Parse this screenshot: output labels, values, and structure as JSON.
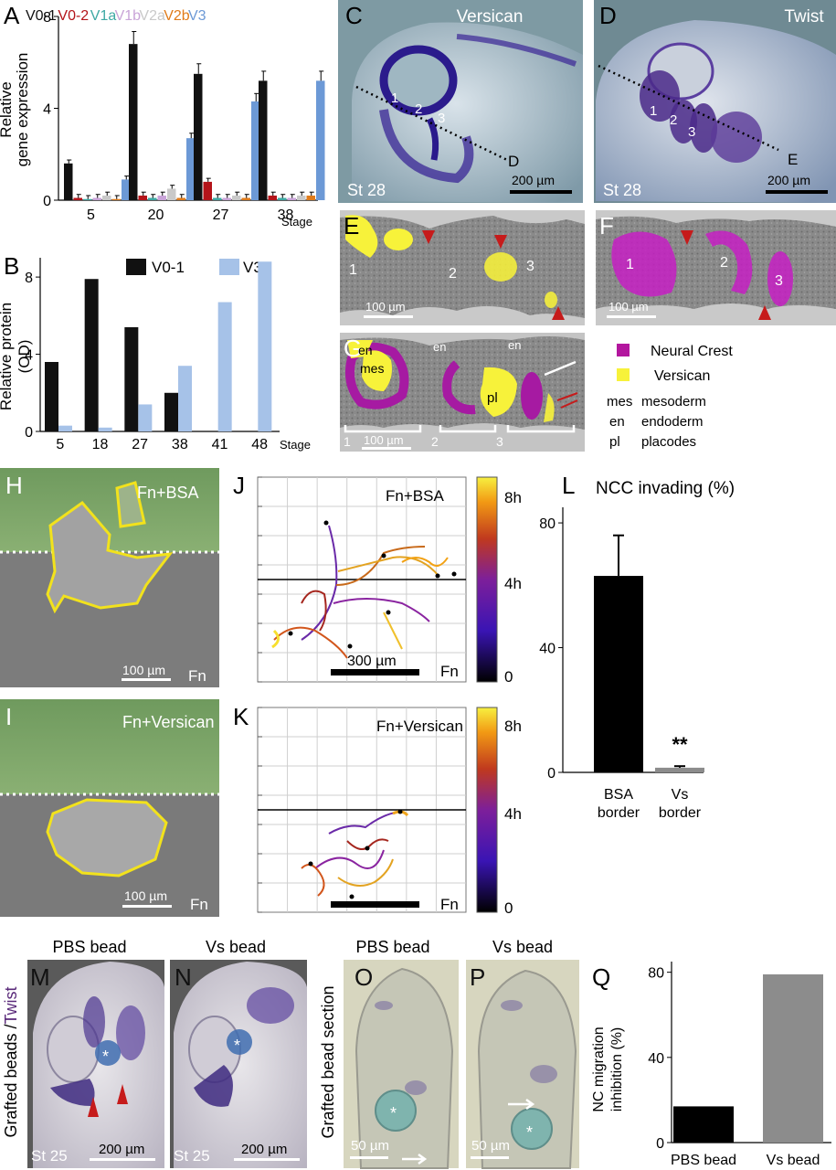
{
  "panel_letters": [
    "A",
    "B",
    "C",
    "D",
    "E",
    "F",
    "G",
    "H",
    "I",
    "J",
    "K",
    "L",
    "M",
    "N",
    "O",
    "P",
    "Q"
  ],
  "panelA": {
    "ylabel": "Relative gene expression",
    "ylabel_line1": "Relative",
    "ylabel_line2": "gene expression",
    "xlabel": "Stage",
    "legend": [
      {
        "name": "V0-1",
        "color": "#111111"
      },
      {
        "name": "V0-2",
        "color": "#b4141a"
      },
      {
        "name": "V1a",
        "color": "#3ea9a4"
      },
      {
        "name": "V1b",
        "color": "#c9a4d8"
      },
      {
        "name": "V2a",
        "color": "#c9c9c9"
      },
      {
        "name": "V2b",
        "color": "#e07b1a"
      },
      {
        "name": "V3",
        "color": "#6c99d6"
      }
    ]
  },
  "panelB": {
    "ylabel_line1": "Relative protein",
    "ylabel_line2": "(OD)",
    "xlabel": "Stage",
    "legend": [
      {
        "name": "V0-1",
        "color": "#111111"
      },
      {
        "name": "V3",
        "color": "#a6c2e8"
      }
    ]
  },
  "panelC": {
    "title": "Versican",
    "stage": "St 28",
    "scale": "200 µm",
    "dashed_label": "D",
    "numbers": [
      "1",
      "2",
      "3"
    ]
  },
  "panelD": {
    "title": "Twist",
    "stage": "St 28",
    "scale": "200 µm",
    "dashed_label": "E",
    "numbers": [
      "1",
      "2",
      "3"
    ]
  },
  "panelE": {
    "scale": "100 µm",
    "numbers": [
      "1",
      "2",
      "3"
    ]
  },
  "panelF": {
    "scale": "100 µm",
    "numbers": [
      "1",
      "2",
      "3"
    ]
  },
  "panelG": {
    "scale": "100 µm",
    "numbers": [
      "1",
      "2",
      "3"
    ],
    "labels": [
      "en",
      "mes",
      "en",
      "en",
      "pl"
    ]
  },
  "legend_fg": {
    "items": [
      {
        "name": "Neural Crest",
        "color": "#b3169e"
      },
      {
        "name": "Versican",
        "color": "#f7f23a"
      }
    ],
    "abbrev": [
      {
        "abbr": "mes",
        "full": "mesoderm"
      },
      {
        "abbr": "en",
        "full": "endoderm"
      },
      {
        "abbr": "pl",
        "full": "placodes"
      }
    ]
  },
  "panelH": {
    "title": "Fn+BSA",
    "scale": "100 µm",
    "bottom": "Fn"
  },
  "panelI": {
    "title": "Fn+Versican",
    "scale": "100 µm",
    "bottom": "Fn"
  },
  "panelJ": {
    "title": "Fn+BSA",
    "scale": "300 µm",
    "bottom": "Fn",
    "colorbar": [
      "8h",
      "4h",
      "0"
    ]
  },
  "panelK": {
    "title": "Fn+Versican",
    "bottom": "Fn",
    "colorbar": [
      "8h",
      "4h",
      "0"
    ]
  },
  "panelL": {
    "title": "NCC invading (%)",
    "significance": "**"
  },
  "panelM": {
    "title": "PBS bead",
    "side_label": "Grafted beads /Twist",
    "side_a": "Grafted beads /",
    "side_b": "Twist",
    "stage": "St 25",
    "scale": "200 µm",
    "bead": "*"
  },
  "panelN": {
    "title": "Vs bead",
    "stage": "St 25",
    "scale": "200 µm",
    "bead": "*"
  },
  "panelO": {
    "title": "PBS bead",
    "side_label": "Grafted bead section",
    "scale": "50 µm",
    "bead": "*"
  },
  "panelP": {
    "title": "Vs bead",
    "scale": "50 µm",
    "bead": "*"
  },
  "panelQ": {
    "ylabel_line1": "NC migration",
    "ylabel_line2": "inhibition (%)"
  },
  "chart_data": [
    {
      "type": "bar",
      "panel": "A",
      "categories": [
        "5",
        "20",
        "27",
        "38"
      ],
      "xlabel": "Stage",
      "ylabel": "Relative gene expression",
      "ylim": [
        0,
        8
      ],
      "yticks": [
        0,
        4,
        8
      ],
      "series": [
        {
          "name": "V0-1",
          "values": [
            1.6,
            6.8,
            5.5,
            5.2
          ]
        },
        {
          "name": "V0-2",
          "values": [
            0.1,
            0.2,
            0.8,
            0.2
          ]
        },
        {
          "name": "V1a",
          "values": [
            0.05,
            0.1,
            0.1,
            0.1
          ]
        },
        {
          "name": "V1b",
          "values": [
            0.1,
            0.2,
            0.1,
            0.1
          ]
        },
        {
          "name": "V2a",
          "values": [
            0.2,
            0.5,
            0.2,
            0.2
          ]
        },
        {
          "name": "V2b",
          "values": [
            0.05,
            0.1,
            0.1,
            0.2
          ]
        },
        {
          "name": "V3",
          "values": [
            0.9,
            2.7,
            4.3,
            5.2
          ]
        }
      ]
    },
    {
      "type": "bar",
      "panel": "B",
      "categories": [
        "5",
        "18",
        "27",
        "38",
        "41",
        "48"
      ],
      "xlabel": "Stage",
      "ylabel": "Relative protein (OD)",
      "ylim": [
        0,
        9
      ],
      "yticks": [
        0,
        4,
        8
      ],
      "series": [
        {
          "name": "V0-1",
          "values": [
            3.6,
            7.9,
            5.4,
            2.0,
            0,
            0
          ]
        },
        {
          "name": "V3",
          "values": [
            0.3,
            0.2,
            1.4,
            3.4,
            6.7,
            8.8
          ]
        }
      ]
    },
    {
      "type": "bar",
      "panel": "L",
      "title": "NCC invading (%)",
      "categories": [
        "BSA border",
        "Vs border"
      ],
      "category_lines": [
        [
          "BSA",
          "border"
        ],
        [
          "Vs",
          "border"
        ]
      ],
      "values": [
        63,
        1.5
      ],
      "errors": [
        13,
        0.5
      ],
      "colors": [
        "#000000",
        "#8c8c8c"
      ],
      "ylim": [
        0,
        85
      ],
      "yticks": [
        0,
        40,
        80
      ]
    },
    {
      "type": "bar",
      "panel": "Q",
      "categories": [
        "PBS bead",
        "Vs bead"
      ],
      "values": [
        17,
        79
      ],
      "colors": [
        "#000000",
        "#8c8c8c"
      ],
      "ylim": [
        0,
        85
      ],
      "yticks": [
        0,
        40,
        80
      ]
    }
  ]
}
